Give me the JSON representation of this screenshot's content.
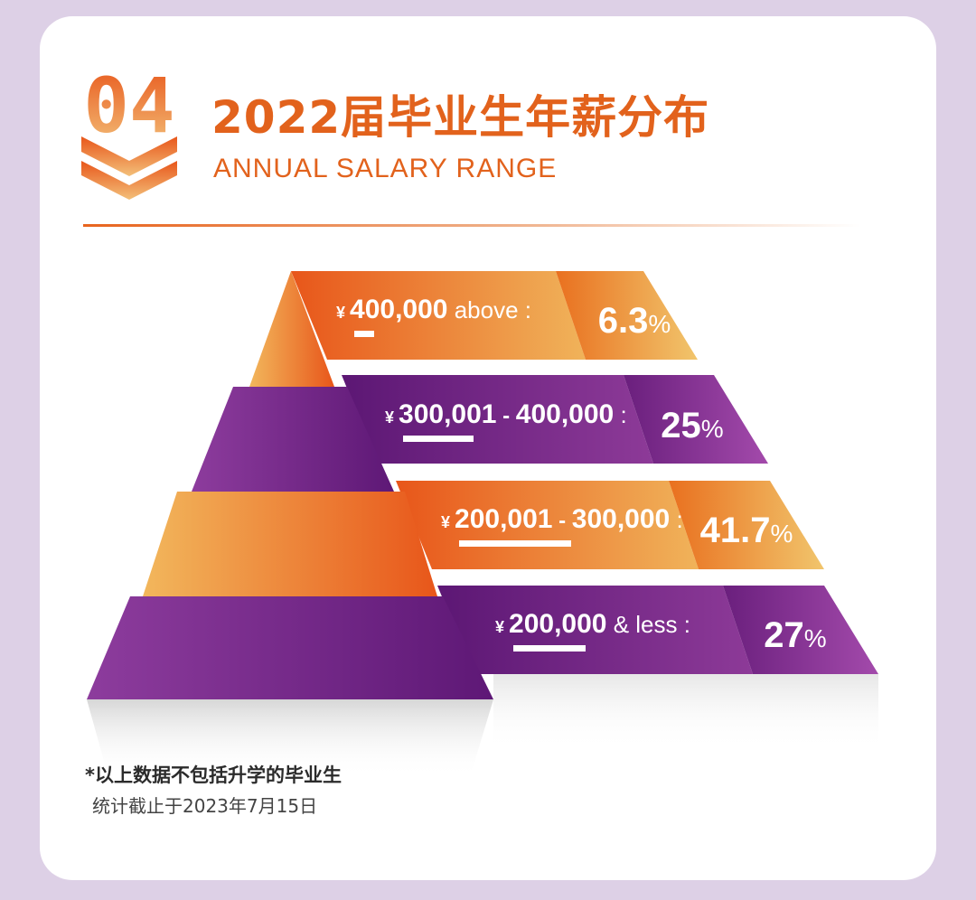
{
  "header": {
    "badge_number": "04",
    "title": "2022届毕业生年薪分布",
    "subtitle": "ANNUAL SALARY RANGE"
  },
  "colors": {
    "orange_dark": "#e8561a",
    "orange_light": "#efbc62",
    "purple_dark": "#5c1774",
    "purple_light": "#9b3fa3",
    "title": "#e2621c"
  },
  "chart_data": {
    "type": "pyramid",
    "title": "2022届毕业生年薪分布",
    "currency_symbol": "¥",
    "tiers": [
      {
        "range_start": "400,000",
        "range_sep": "",
        "range_end": "",
        "suffix": "above :",
        "value": 6.3,
        "value_label": "6.3",
        "unit": "%",
        "color": "orange"
      },
      {
        "range_start": "300,001",
        "range_sep": "-",
        "range_end": "400,000",
        "suffix": ":",
        "value": 25,
        "value_label": "25",
        "unit": "%",
        "color": "purple"
      },
      {
        "range_start": "200,001",
        "range_sep": "-",
        "range_end": "300,000",
        "suffix": ":",
        "value": 41.7,
        "value_label": "41.7",
        "unit": "%",
        "color": "orange"
      },
      {
        "range_start": "200,000",
        "range_sep": "",
        "range_end": "",
        "suffix": "& less :",
        "value": 27,
        "value_label": "27",
        "unit": "%",
        "color": "purple"
      }
    ]
  },
  "footnote": {
    "line1": "*以上数据不包括升学的毕业生",
    "line2": "统计截止于2023年7月15日"
  }
}
